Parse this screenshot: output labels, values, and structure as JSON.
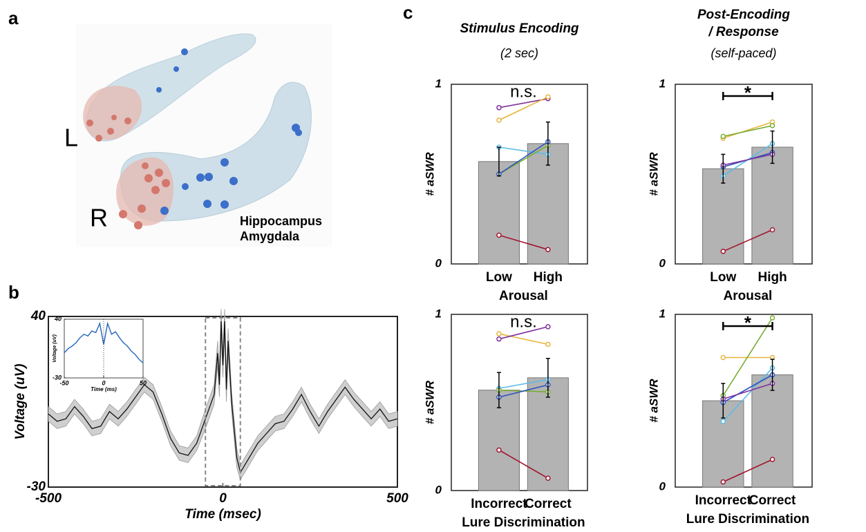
{
  "panel_labels": [
    "a",
    "b",
    "c"
  ],
  "anatomy": {
    "side_labels": [
      "L",
      "R"
    ],
    "legend": [
      {
        "name": "Hippocampus",
        "color": "#3b6fc9"
      },
      {
        "name": "Amygdala",
        "color": "#c9675c"
      }
    ]
  },
  "chart_data": [
    {
      "type": "line",
      "xlabel": "Time (msec)",
      "ylabel": "Voltage (uV)",
      "xlim": [
        -500,
        500
      ],
      "xticks": [
        -500,
        0,
        500
      ],
      "ylim": [
        -30,
        40
      ],
      "yticks": [
        -30,
        40
      ],
      "band_color": "#cfcfcf",
      "series": [
        {
          "color": "#111111",
          "x": [
            -500,
            -475,
            -450,
            -425,
            -400,
            -375,
            -350,
            -325,
            -300,
            -275,
            -250,
            -225,
            -200,
            -175,
            -150,
            -125,
            -100,
            -75,
            -50,
            -25,
            -15,
            -10,
            -5,
            0,
            5,
            10,
            15,
            25,
            40,
            50,
            75,
            100,
            125,
            150,
            175,
            200,
            225,
            250,
            275,
            300,
            325,
            350,
            375,
            400,
            425,
            450,
            475,
            500
          ],
          "values": [
            0,
            -3,
            -2,
            3,
            -1,
            -6,
            -5,
            1,
            -2,
            2,
            7,
            12,
            9,
            0,
            -10,
            -16,
            -17,
            -12,
            -2,
            8,
            25,
            12,
            38,
            20,
            38,
            10,
            30,
            5,
            -18,
            -24,
            -18,
            -12,
            -8,
            -4,
            -3,
            2,
            8,
            1,
            -5,
            1,
            6,
            11,
            6,
            2,
            -2,
            2,
            -3,
            -2
          ],
          "errors": [
            3,
            3,
            3,
            3,
            3,
            3,
            3,
            3,
            3,
            3,
            3,
            3,
            3,
            3,
            3,
            3,
            3,
            3,
            4,
            4,
            5,
            5,
            5,
            5,
            5,
            5,
            5,
            4,
            4,
            3,
            3,
            3,
            3,
            3,
            3,
            3,
            3,
            3,
            3,
            3,
            3,
            3,
            3,
            3,
            3,
            3,
            3,
            3
          ]
        }
      ]
    },
    {
      "type": "line",
      "inset": true,
      "xlabel": "Time (ms)",
      "ylabel": "Voltage (uV)",
      "xlim": [
        -50,
        50
      ],
      "xticks": [
        -50,
        0,
        50
      ],
      "ylim": [
        -30,
        40
      ],
      "yticks": [
        -30,
        40
      ],
      "series": [
        {
          "color": "#2e6fc0",
          "x": [
            -50,
            -45,
            -40,
            -35,
            -30,
            -25,
            -20,
            -15,
            -10,
            -5,
            0,
            5,
            10,
            15,
            20,
            25,
            30,
            35,
            40,
            45,
            50
          ],
          "values": [
            0,
            5,
            8,
            12,
            18,
            22,
            20,
            26,
            24,
            35,
            10,
            35,
            22,
            25,
            18,
            12,
            8,
            2,
            -2,
            -8,
            -12
          ]
        }
      ]
    },
    {
      "type": "bar",
      "title_lines": [
        "Stimulus Encoding"
      ],
      "subtitle": "(2 sec)",
      "ylabel": "# aSWR",
      "categories": [
        "Low",
        "High"
      ],
      "xlabel": "Arousal",
      "ylim": [
        0,
        1
      ],
      "yticks": [
        0,
        1
      ],
      "values": [
        0.57,
        0.67
      ],
      "errors": [
        0.08,
        0.12
      ],
      "color": "#b3b3b3",
      "annotation": "n.s.",
      "bracket": false,
      "series": [
        {
          "color": "#7e2f9e",
          "values": [
            0.87,
            0.92
          ]
        },
        {
          "color": "#e8b43c",
          "values": [
            0.8,
            0.93
          ]
        },
        {
          "color": "#5bbbe8",
          "values": [
            0.65,
            0.61
          ]
        },
        {
          "color": "#77ac30",
          "values": [
            0.5,
            0.66
          ]
        },
        {
          "color": "#2a52be",
          "values": [
            0.5,
            0.68
          ]
        },
        {
          "color": "#a2142f",
          "values": [
            0.16,
            0.08
          ]
        }
      ]
    },
    {
      "type": "bar",
      "title_lines": [
        "Post-Encoding",
        "/ Response"
      ],
      "subtitle": "(self-paced)",
      "ylabel": "# aSWR",
      "categories": [
        "Low",
        "High"
      ],
      "xlabel": "Arousal",
      "ylim": [
        0,
        1
      ],
      "yticks": [
        0,
        1
      ],
      "values": [
        0.53,
        0.65
      ],
      "errors": [
        0.08,
        0.09
      ],
      "color": "#b3b3b3",
      "annotation": "*",
      "bracket": true,
      "series": [
        {
          "color": "#e8b43c",
          "values": [
            0.7,
            0.79
          ]
        },
        {
          "color": "#77ac30",
          "values": [
            0.71,
            0.77
          ]
        },
        {
          "color": "#5bbbe8",
          "values": [
            0.49,
            0.67
          ]
        },
        {
          "color": "#2a52be",
          "values": [
            0.54,
            0.62
          ]
        },
        {
          "color": "#7e2f9e",
          "values": [
            0.55,
            0.61
          ]
        },
        {
          "color": "#a2142f",
          "values": [
            0.07,
            0.19
          ]
        }
      ]
    },
    {
      "type": "bar",
      "ylabel": "# aSWR",
      "categories": [
        "Incorrect",
        "Correct"
      ],
      "xlabel": "Lure Discrimination",
      "ylim": [
        0,
        1
      ],
      "yticks": [
        0,
        1
      ],
      "values": [
        0.57,
        0.64
      ],
      "errors": [
        0.1,
        0.11
      ],
      "color": "#b3b3b3",
      "annotation": "n.s.",
      "bracket": false,
      "series": [
        {
          "color": "#e8b43c",
          "values": [
            0.89,
            0.83
          ]
        },
        {
          "color": "#7e2f9e",
          "values": [
            0.86,
            0.93
          ]
        },
        {
          "color": "#5bbbe8",
          "values": [
            0.58,
            0.63
          ]
        },
        {
          "color": "#77ac30",
          "values": [
            0.57,
            0.56
          ]
        },
        {
          "color": "#2a52be",
          "values": [
            0.53,
            0.6
          ]
        },
        {
          "color": "#a2142f",
          "values": [
            0.23,
            0.07
          ]
        }
      ]
    },
    {
      "type": "bar",
      "ylabel": "# aSWR",
      "categories": [
        "Incorrect",
        "Correct"
      ],
      "xlabel": "Lure Discrimination",
      "ylim": [
        0,
        1
      ],
      "yticks": [
        0,
        1
      ],
      "values": [
        0.5,
        0.65
      ],
      "errors": [
        0.1,
        0.09
      ],
      "color": "#b3b3b3",
      "annotation": "*",
      "bracket": true,
      "series": [
        {
          "color": "#e8b43c",
          "values": [
            0.75,
            0.75
          ]
        },
        {
          "color": "#77ac30",
          "values": [
            0.53,
            0.98
          ]
        },
        {
          "color": "#5bbbe8",
          "values": [
            0.38,
            0.69
          ]
        },
        {
          "color": "#2a52be",
          "values": [
            0.49,
            0.65
          ]
        },
        {
          "color": "#7e2f9e",
          "values": [
            0.51,
            0.6
          ]
        },
        {
          "color": "#a2142f",
          "values": [
            0.03,
            0.16
          ]
        }
      ]
    }
  ]
}
